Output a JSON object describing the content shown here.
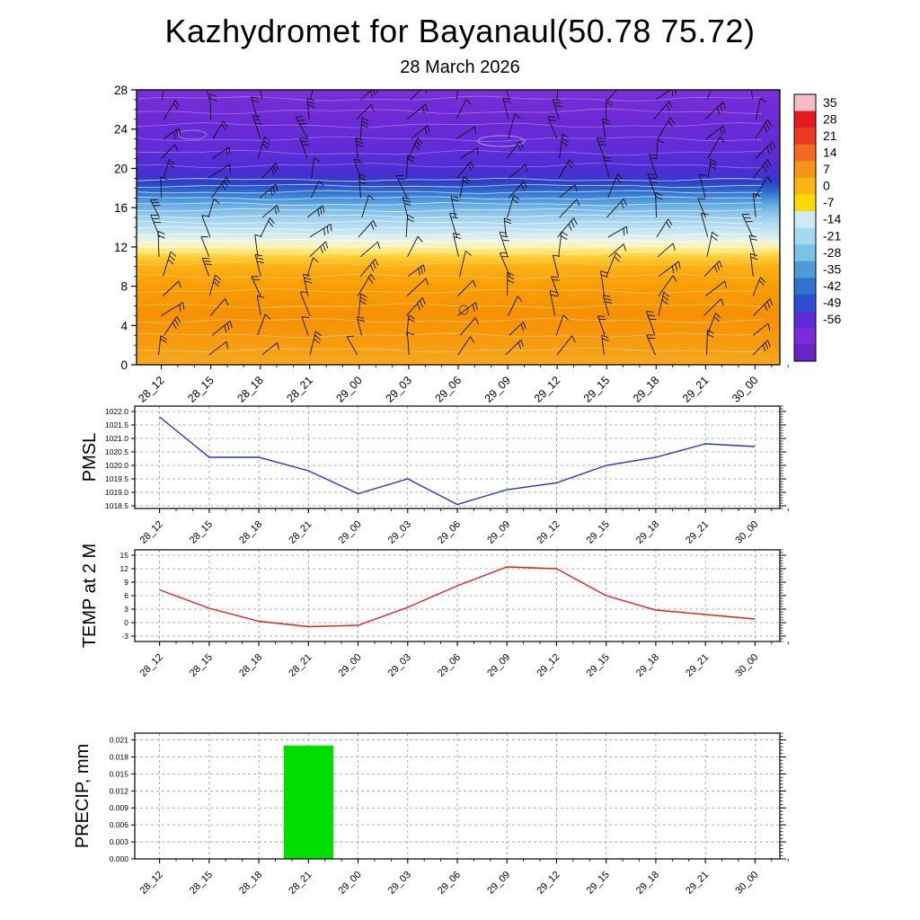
{
  "title": "Kazhydromet for Bayanaul(50.78 75.72)",
  "subtitle": "28 March 2026",
  "time_labels": [
    "28_12",
    "28_15",
    "28_18",
    "28_21",
    "29_00",
    "29_03",
    "29_06",
    "29_09",
    "29_12",
    "29_15",
    "29_18",
    "29_21",
    "30_00"
  ],
  "chart_data": [
    {
      "type": "heatmap",
      "name": "temperature-wind cross-section",
      "x": [
        "28_12",
        "28_15",
        "28_18",
        "28_21",
        "29_00",
        "29_03",
        "29_06",
        "29_09",
        "29_12",
        "29_15",
        "29_18",
        "29_21",
        "30_00"
      ],
      "ylim": [
        0,
        28
      ],
      "yticks": [
        0,
        4,
        8,
        12,
        16,
        20,
        24,
        28
      ],
      "colorbar": {
        "ticks": [
          35,
          28,
          21,
          14,
          7,
          0,
          -7,
          -14,
          -21,
          -28,
          -35,
          -42,
          -49,
          -56
        ],
        "segment_colors": [
          "#f6bcc3",
          "#e41b21",
          "#e93a20",
          "#f16a1f",
          "#f8941a",
          "#fcb513",
          "#ffda00",
          "#cfe9f6",
          "#a5d9ef",
          "#79c2e8",
          "#4e9bd8",
          "#3372cc",
          "#2f4ecf",
          "#5b2ed8",
          "#7c2bd9",
          "#6b24c4"
        ]
      },
      "gradient_stops": [
        {
          "offset": 0.0,
          "color": "#7a30d8"
        },
        {
          "offset": 0.1,
          "color": "#6e2ad4"
        },
        {
          "offset": 0.22,
          "color": "#5f2cd8"
        },
        {
          "offset": 0.3,
          "color": "#4a2ed2"
        },
        {
          "offset": 0.335,
          "color": "#2d3fc6"
        },
        {
          "offset": 0.365,
          "color": "#2f66cc"
        },
        {
          "offset": 0.395,
          "color": "#4490da"
        },
        {
          "offset": 0.43,
          "color": "#74b6e6"
        },
        {
          "offset": 0.47,
          "color": "#a2d2ee"
        },
        {
          "offset": 0.52,
          "color": "#c9e7f5"
        },
        {
          "offset": 0.55,
          "color": "#ecf5e4"
        },
        {
          "offset": 0.572,
          "color": "#fdf2a8"
        },
        {
          "offset": 0.6,
          "color": "#ffd743"
        },
        {
          "offset": 0.64,
          "color": "#fcb115"
        },
        {
          "offset": 0.71,
          "color": "#f89f06"
        },
        {
          "offset": 0.82,
          "color": "#f69104"
        },
        {
          "offset": 0.93,
          "color": "#f69d12"
        },
        {
          "offset": 1.0,
          "color": "#f8a81f"
        }
      ]
    },
    {
      "type": "line",
      "name": "PMSL",
      "color": "#2233cc",
      "x": [
        "28_12",
        "28_15",
        "28_18",
        "28_21",
        "29_00",
        "29_03",
        "29_06",
        "29_09",
        "29_12",
        "29_15",
        "29_18",
        "29_21",
        "30_00"
      ],
      "values": [
        1021.8,
        1020.3,
        1020.3,
        1019.8,
        1018.95,
        1019.5,
        1018.55,
        1019.1,
        1019.35,
        1020.0,
        1020.3,
        1020.8,
        1020.7
      ],
      "yticks": [
        1018.5,
        1019.0,
        1019.5,
        1020.0,
        1020.5,
        1021.0,
        1021.5,
        1022.0
      ],
      "ylim": [
        1018.4,
        1022.2
      ],
      "decimals": 1
    },
    {
      "type": "line",
      "name": "TEMP at 2 M",
      "color": "#e02020",
      "x": [
        "28_12",
        "28_15",
        "28_18",
        "28_21",
        "29_00",
        "29_03",
        "29_06",
        "29_09",
        "29_12",
        "29_15",
        "29_18",
        "29_21",
        "30_00"
      ],
      "values": [
        7.3,
        3.2,
        0.3,
        -0.9,
        -0.6,
        3.4,
        8.2,
        12.4,
        12.0,
        6.0,
        2.8,
        1.8,
        0.8
      ],
      "yticks": [
        -3,
        0,
        3,
        6,
        9,
        12,
        15
      ],
      "ylim": [
        -4.2,
        16.2
      ],
      "decimals": 0
    },
    {
      "type": "bar",
      "name": "PRECIP, mm",
      "color": "#00dd00",
      "x": [
        "28_12",
        "28_15",
        "28_18",
        "28_21",
        "29_00",
        "29_03",
        "29_06",
        "29_09",
        "29_12",
        "29_15",
        "29_18",
        "29_21",
        "30_00"
      ],
      "values": [
        0,
        0,
        0,
        0.02,
        0,
        0,
        0,
        0,
        0,
        0,
        0,
        0,
        0
      ],
      "yticks": [
        0.0,
        0.003,
        0.006,
        0.009,
        0.012,
        0.015,
        0.018,
        0.021
      ],
      "ylim": [
        0,
        0.0222
      ],
      "decimals": 3
    }
  ]
}
